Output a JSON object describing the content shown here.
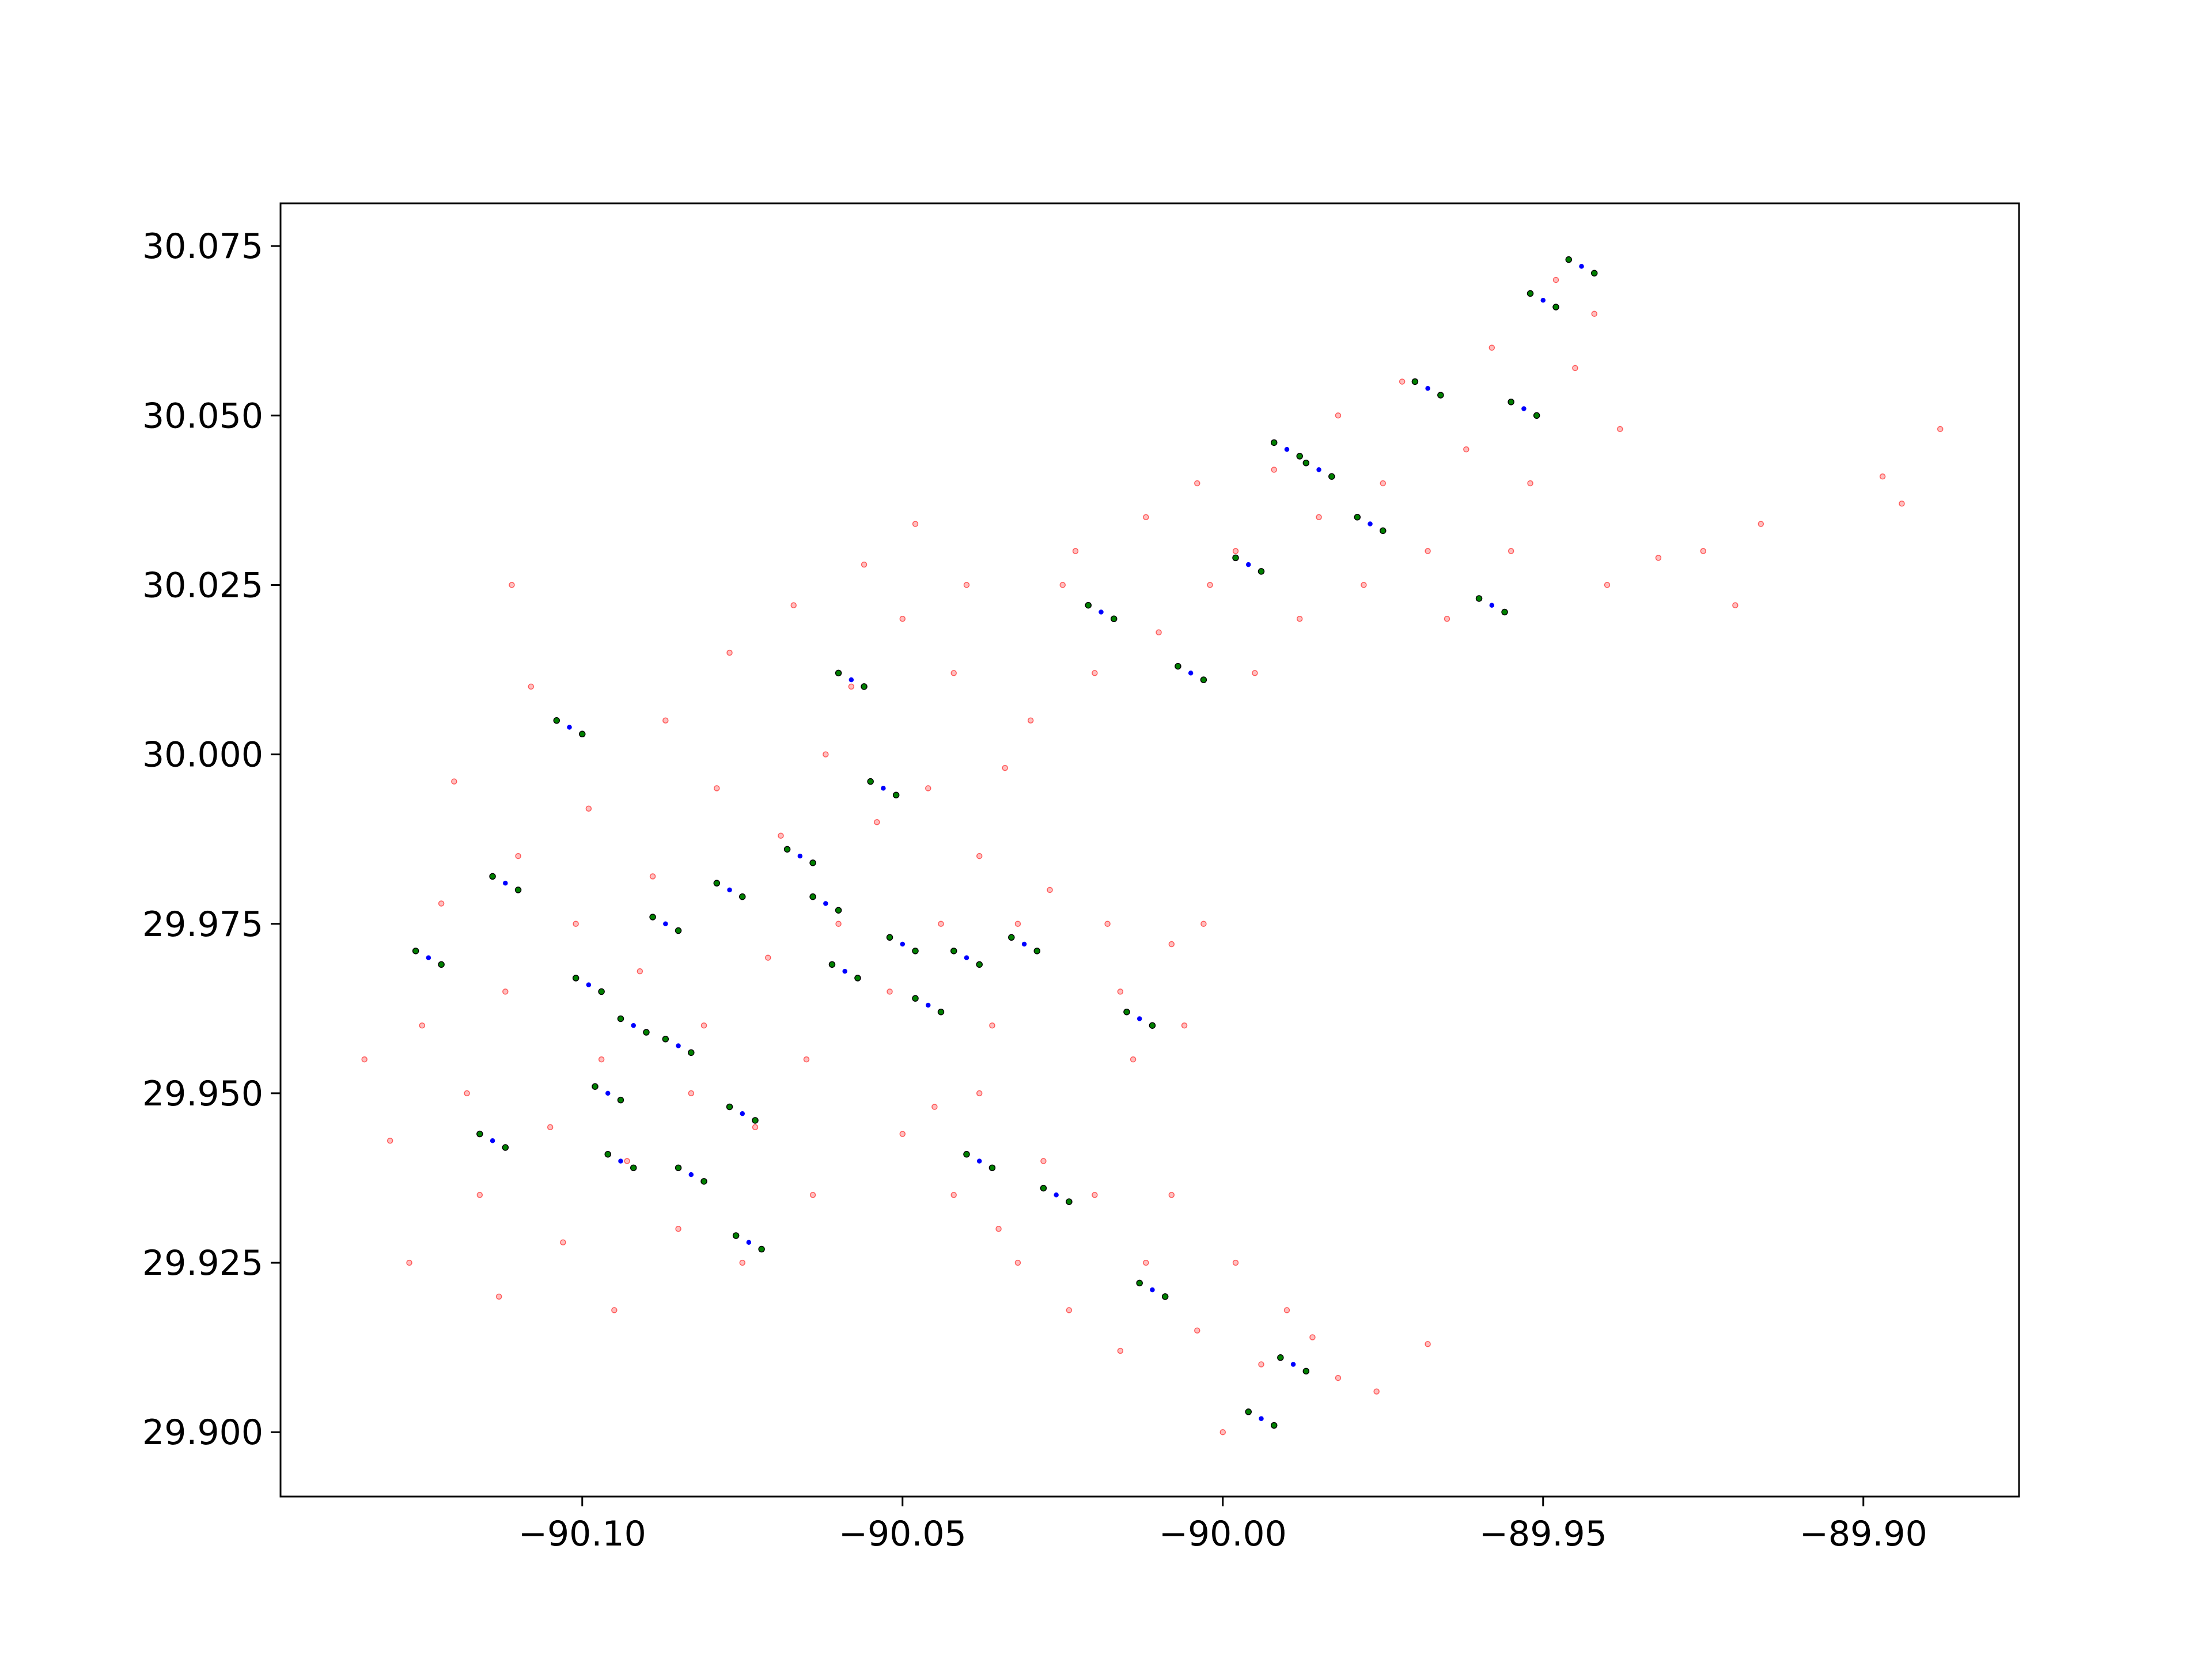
{
  "chart_data": {
    "type": "scatter",
    "xlim": [
      -90.1471,
      -89.8757
    ],
    "ylim": [
      29.8905,
      30.0813
    ],
    "xticks": [
      {
        "value": -90.1,
        "label": "−90.10"
      },
      {
        "value": -90.05,
        "label": "−90.05"
      },
      {
        "value": -90.0,
        "label": "−90.00"
      },
      {
        "value": -89.95,
        "label": "−89.95"
      },
      {
        "value": -89.9,
        "label": "−89.90"
      }
    ],
    "yticks": [
      {
        "value": 29.9,
        "label": "29.900"
      },
      29.925,
      {
        "value": 29.95,
        "label": "29.950"
      },
      29.975,
      {
        "value": 30.0,
        "label": "30.000"
      },
      30.025,
      {
        "value": 30.05,
        "label": "30.050"
      },
      30.075
    ],
    "grid": false,
    "series": [
      {
        "color": "#ff0000",
        "x": [
          -90.134,
          -90.13,
          -90.127,
          -90.125,
          -90.122,
          -90.12,
          -90.118,
          -90.116,
          -90.113,
          -90.112,
          -90.11,
          -90.108,
          -90.111,
          -90.105,
          -90.103,
          -90.101,
          -90.099,
          -90.097,
          -90.095,
          -90.093,
          -90.091,
          -90.089,
          -90.087,
          -90.085,
          -90.083,
          -90.081,
          -90.079,
          -90.077,
          -90.075,
          -90.073,
          -90.071,
          -90.069,
          -90.067,
          -90.065,
          -90.064,
          -90.062,
          -90.06,
          -90.058,
          -90.056,
          -90.054,
          -90.052,
          -90.05,
          -90.048,
          -90.046,
          -90.044,
          -90.042,
          -90.04,
          -90.038,
          -90.036,
          -90.034,
          -90.032,
          -90.03,
          -90.027,
          -90.025,
          -90.023,
          -90.02,
          -90.018,
          -90.016,
          -90.014,
          -90.012,
          -90.01,
          -90.008,
          -90.006,
          -90.004,
          -90.002,
          -90.003,
          -89.998,
          -89.995,
          -89.992,
          -89.988,
          -89.985,
          -89.982,
          -89.978,
          -89.975,
          -89.972,
          -89.968,
          -89.965,
          -89.962,
          -89.958,
          -89.955,
          -89.952,
          -89.948,
          -89.945,
          -89.942,
          -89.94,
          -89.938,
          -89.932,
          -89.925,
          -89.92,
          -89.916,
          -89.897,
          -89.894,
          -89.888,
          -90.05,
          -90.045,
          -90.042,
          -90.038,
          -90.035,
          -90.032,
          -90.028,
          -90.024,
          -90.02,
          -90.016,
          -90.012,
          -90.008,
          -90.004,
          -90.0,
          -89.998,
          -89.994,
          -89.99,
          -89.986,
          -89.982,
          -89.976,
          -89.968
        ],
        "y": [
          29.955,
          29.943,
          29.925,
          29.96,
          29.978,
          29.996,
          29.95,
          29.935,
          29.92,
          29.965,
          29.985,
          30.01,
          30.025,
          29.945,
          29.928,
          29.975,
          29.992,
          29.955,
          29.918,
          29.94,
          29.968,
          29.982,
          30.005,
          29.93,
          29.95,
          29.96,
          29.995,
          30.015,
          29.925,
          29.945,
          29.97,
          29.988,
          30.022,
          29.955,
          29.935,
          30.0,
          29.975,
          30.01,
          30.028,
          29.99,
          29.965,
          30.02,
          30.034,
          29.995,
          29.975,
          30.012,
          30.025,
          29.985,
          29.96,
          29.998,
          29.975,
          30.005,
          29.98,
          30.025,
          30.03,
          30.012,
          29.975,
          29.965,
          29.955,
          30.035,
          30.018,
          29.972,
          29.96,
          30.04,
          30.025,
          29.975,
          30.03,
          30.012,
          30.042,
          30.02,
          30.035,
          30.05,
          30.025,
          30.04,
          30.055,
          30.03,
          30.02,
          30.045,
          30.06,
          30.03,
          30.04,
          30.07,
          30.057,
          30.065,
          30.025,
          30.048,
          30.029,
          30.03,
          30.022,
          30.034,
          30.041,
          30.037,
          30.048,
          29.944,
          29.948,
          29.935,
          29.95,
          29.93,
          29.925,
          29.94,
          29.918,
          29.935,
          29.912,
          29.925,
          29.935,
          29.915,
          29.9,
          29.925,
          29.91,
          29.918,
          29.914,
          29.908,
          29.906,
          29.913
        ]
      },
      {
        "color": "#008000",
        "x": [
          -90.126,
          -90.122,
          -90.116,
          -90.112,
          -90.114,
          -90.11,
          -90.104,
          -90.1,
          -90.101,
          -90.097,
          -90.098,
          -90.094,
          -90.096,
          -90.092,
          -90.094,
          -90.09,
          -90.089,
          -90.085,
          -90.087,
          -90.083,
          -90.085,
          -90.081,
          -90.079,
          -90.075,
          -90.077,
          -90.073,
          -90.076,
          -90.072,
          -90.068,
          -90.064,
          -90.064,
          -90.06,
          -90.061,
          -90.057,
          -90.06,
          -90.056,
          -90.055,
          -90.051,
          -90.052,
          -90.048,
          -90.048,
          -90.044,
          -90.042,
          -90.038,
          -90.04,
          -90.036,
          -90.033,
          -90.029,
          -90.028,
          -90.024,
          -90.021,
          -90.017,
          -90.015,
          -90.011,
          -90.013,
          -90.009,
          -90.007,
          -90.003,
          -89.998,
          -89.994,
          -89.992,
          -89.988,
          -89.987,
          -89.983,
          -89.979,
          -89.975,
          -89.97,
          -89.966,
          -89.96,
          -89.956,
          -89.952,
          -89.948,
          -89.946,
          -89.942,
          -89.991,
          -89.987,
          -89.996,
          -89.992,
          -89.955,
          -89.951
        ],
        "y": [
          29.971,
          29.969,
          29.944,
          29.942,
          29.982,
          29.98,
          30.005,
          30.003,
          29.967,
          29.965,
          29.951,
          29.949,
          29.941,
          29.939,
          29.961,
          29.959,
          29.976,
          29.974,
          29.958,
          29.956,
          29.939,
          29.937,
          29.981,
          29.979,
          29.948,
          29.946,
          29.929,
          29.927,
          29.986,
          29.984,
          29.979,
          29.977,
          29.969,
          29.967,
          30.012,
          30.01,
          29.996,
          29.994,
          29.973,
          29.971,
          29.964,
          29.962,
          29.971,
          29.969,
          29.941,
          29.939,
          29.973,
          29.971,
          29.936,
          29.934,
          30.022,
          30.02,
          29.962,
          29.96,
          29.922,
          29.92,
          30.013,
          30.011,
          30.029,
          30.027,
          30.046,
          30.044,
          30.043,
          30.041,
          30.035,
          30.033,
          30.055,
          30.053,
          30.023,
          30.021,
          30.068,
          30.066,
          30.073,
          30.071,
          29.911,
          29.909,
          29.903,
          29.901,
          30.052,
          30.05
        ]
      },
      {
        "color": "#0000ff",
        "x": [
          -90.124,
          -90.114,
          -90.112,
          -90.102,
          -90.099,
          -90.096,
          -90.094,
          -90.092,
          -90.087,
          -90.085,
          -90.083,
          -90.077,
          -90.075,
          -90.074,
          -90.066,
          -90.062,
          -90.059,
          -90.058,
          -90.053,
          -90.05,
          -90.046,
          -90.04,
          -90.038,
          -90.031,
          -90.026,
          -90.019,
          -90.013,
          -90.011,
          -90.005,
          -89.996,
          -89.99,
          -89.985,
          -89.977,
          -89.968,
          -89.958,
          -89.95,
          -89.944,
          -89.989,
          -89.994,
          -89.953
        ],
        "y": [
          29.97,
          29.943,
          29.981,
          30.004,
          29.966,
          29.95,
          29.94,
          29.96,
          29.975,
          29.957,
          29.938,
          29.98,
          29.947,
          29.928,
          29.985,
          29.978,
          29.968,
          30.011,
          29.995,
          29.972,
          29.963,
          29.97,
          29.94,
          29.972,
          29.935,
          30.021,
          29.961,
          29.921,
          30.012,
          30.028,
          30.045,
          30.042,
          30.034,
          30.054,
          30.022,
          30.067,
          30.072,
          29.91,
          29.902,
          30.051
        ]
      }
    ]
  }
}
